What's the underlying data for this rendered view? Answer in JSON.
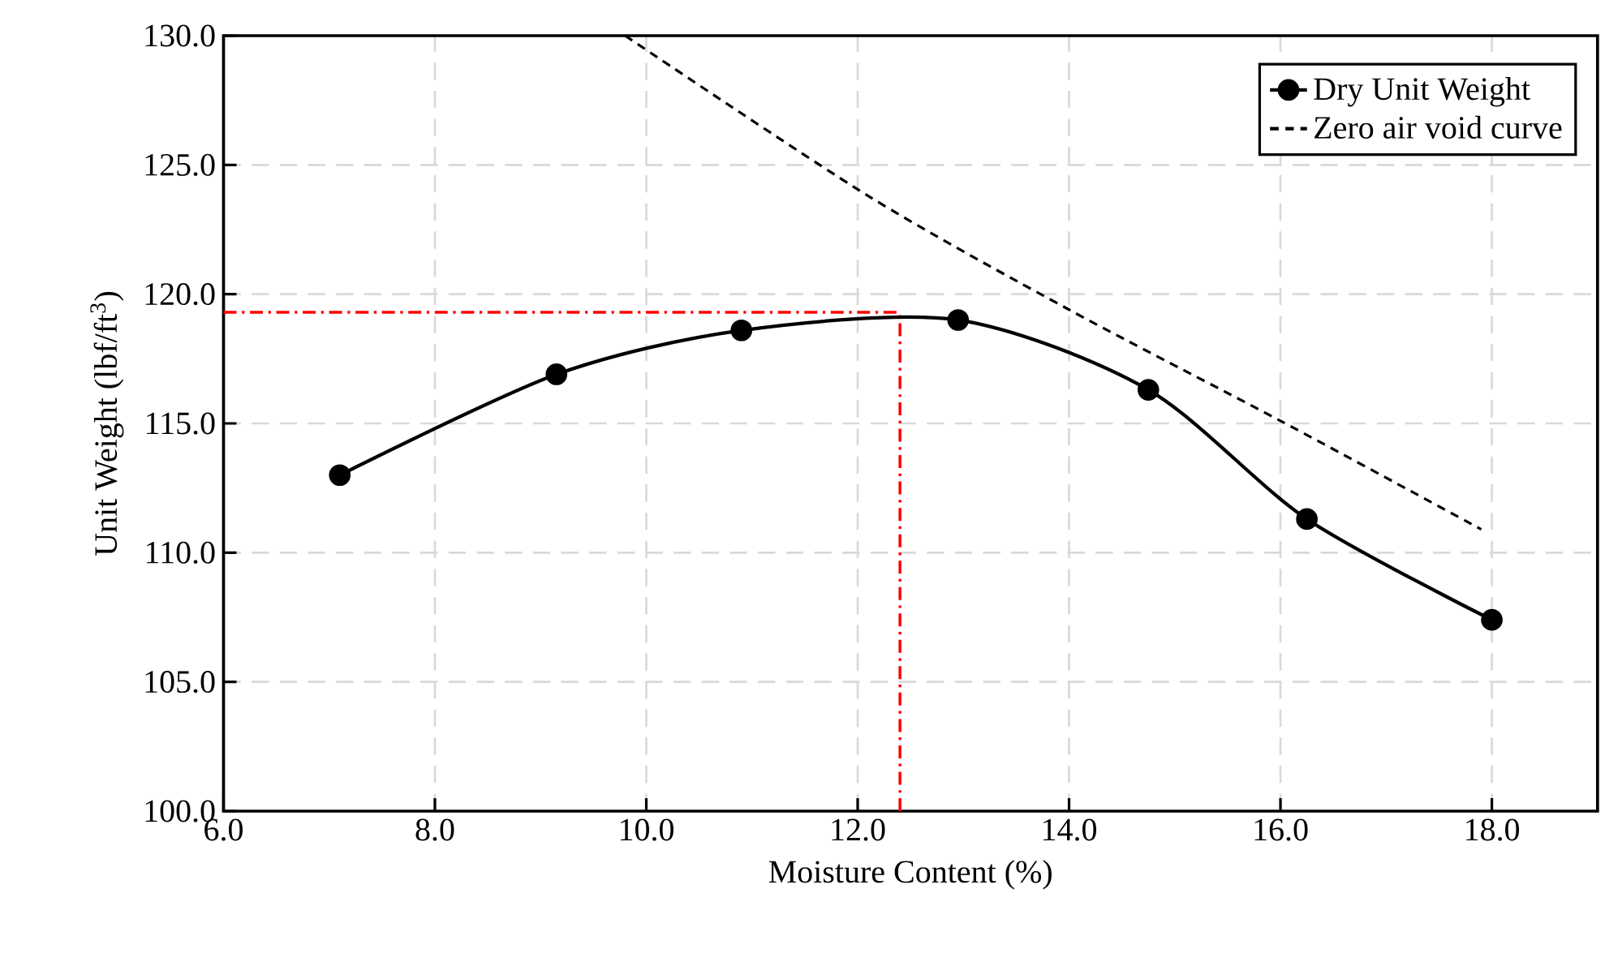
{
  "chart_data": {
    "type": "line",
    "xlabel": "Moisture Content (%)",
    "ylabel": "Unit Weight (lbf/ft$^{3}$)",
    "xlim": [
      6,
      19
    ],
    "ylim": [
      100,
      130
    ],
    "xticks": [
      {
        "value": 6,
        "label": "6.0"
      },
      {
        "value": 8,
        "label": "8.0"
      },
      {
        "value": 10,
        "label": "10.0"
      },
      {
        "value": 12,
        "label": "12.0"
      },
      {
        "value": 14,
        "label": "14.0"
      },
      {
        "value": 16,
        "label": "16.0"
      },
      {
        "value": 18,
        "label": "18.0"
      }
    ],
    "yticks": [
      {
        "value": 100,
        "label": "100.0"
      },
      {
        "value": 105,
        "label": "105.0"
      },
      {
        "value": 110,
        "label": "110.0"
      },
      {
        "value": 115,
        "label": "115.0"
      },
      {
        "value": 120,
        "label": "120.0"
      },
      {
        "value": 125,
        "label": "125.0"
      },
      {
        "value": 130,
        "label": "130.0"
      }
    ],
    "series": [
      {
        "name": "Dry Unit Weight",
        "color": "#000000",
        "marker": "circle",
        "line_style": "solid",
        "x": [
          7.1,
          9.15,
          10.9,
          12.95,
          14.75,
          16.25,
          18.0
        ],
        "values": [
          113.0,
          116.9,
          118.6,
          119.0,
          116.3,
          111.3,
          107.4
        ]
      },
      {
        "name": "Zero air void curve",
        "color": "#000000",
        "marker": "none",
        "line_style": "dashed",
        "x": [
          9.8,
          12.1,
          14.0,
          16.0,
          17.9
        ],
        "values": [
          130.0,
          123.8,
          119.4,
          115.1,
          110.9
        ]
      }
    ],
    "ref_lines": [
      {
        "axis": "x",
        "value": 12.4,
        "color": "#ff0000",
        "line_style": "dashdot"
      },
      {
        "axis": "y",
        "value": 119.3,
        "color": "#ff0000",
        "line_style": "dashdot"
      }
    ],
    "grid": true,
    "legend": "top right"
  }
}
